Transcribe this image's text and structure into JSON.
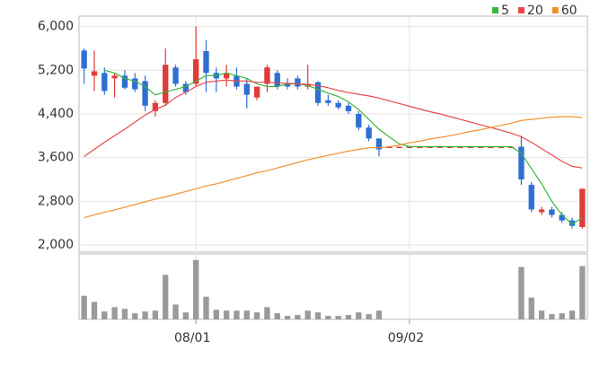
{
  "chart_data": {
    "type": "candlestick",
    "categories": [
      null,
      null,
      null,
      null,
      null,
      null,
      null,
      null,
      null,
      null,
      null,
      "08/01",
      null,
      null,
      null,
      null,
      null,
      null,
      null,
      null,
      null,
      null,
      null,
      null,
      null,
      null,
      null,
      null,
      null,
      null,
      null,
      null,
      "09/02",
      null,
      null,
      null,
      null,
      null,
      null,
      null,
      null,
      null,
      null,
      null,
      null,
      null,
      null,
      null,
      null,
      null
    ],
    "open": [
      5560,
      5100,
      5150,
      5050,
      5100,
      5050,
      5000,
      4450,
      4600,
      5250,
      4950,
      4950,
      5550,
      5150,
      5050,
      5100,
      4950,
      4700,
      4950,
      5150,
      4950,
      5050,
      4900,
      4980,
      4650,
      4600,
      4550,
      4400,
      4150,
      3950,
      3800,
      3800,
      3800,
      3800,
      3800,
      3800,
      3800,
      3800,
      3800,
      3800,
      3800,
      3800,
      3800,
      3800,
      3100,
      2600,
      2650,
      2550,
      2450,
      2330
    ],
    "high": [
      5600,
      5560,
      5250,
      5150,
      5200,
      5150,
      5100,
      4650,
      5600,
      5300,
      5000,
      6000,
      5750,
      5250,
      5300,
      5250,
      5050,
      4900,
      5300,
      5200,
      5050,
      5100,
      5300,
      5000,
      4750,
      4650,
      4600,
      4450,
      4200,
      3950,
      3800,
      3800,
      3800,
      3800,
      3800,
      3800,
      3800,
      3800,
      3800,
      3800,
      3800,
      3800,
      3800,
      4000,
      3150,
      2700,
      2700,
      2600,
      2500,
      3030
    ],
    "low": [
      4950,
      4820,
      4750,
      4700,
      4850,
      4800,
      4450,
      4350,
      4550,
      4900,
      4750,
      4900,
      4800,
      4800,
      4900,
      4850,
      4500,
      4650,
      4800,
      4850,
      4850,
      4850,
      4850,
      4550,
      4550,
      4480,
      4400,
      4100,
      3900,
      3620,
      3800,
      3800,
      3800,
      3800,
      3800,
      3800,
      3800,
      3800,
      3800,
      3800,
      3800,
      3800,
      3800,
      3100,
      2600,
      2550,
      2500,
      2400,
      2300,
      2300
    ],
    "close": [
      5230,
      5180,
      4820,
      5100,
      4880,
      4850,
      4550,
      4600,
      5300,
      4950,
      4800,
      5400,
      5150,
      5050,
      5150,
      4900,
      4750,
      4900,
      5250,
      4900,
      4900,
      4900,
      4950,
      4600,
      4600,
      4520,
      4450,
      4150,
      3950,
      3750,
      3800,
      3800,
      3800,
      3800,
      3800,
      3800,
      3800,
      3800,
      3800,
      3800,
      3800,
      3800,
      3800,
      3200,
      2650,
      2650,
      2550,
      2450,
      2350,
      3030
    ],
    "up_color": "#e03a3a",
    "down_color": "#2e6fd3",
    "ylim": [
      1870,
      6190
    ],
    "yticks": [
      {
        "value": 2000,
        "label": "2,000"
      },
      {
        "value": 2800,
        "label": "2,800"
      },
      {
        "value": 3600,
        "label": "3,600"
      },
      {
        "value": 4400,
        "label": "4,400"
      },
      {
        "value": 5200,
        "label": "5,200"
      },
      {
        "value": 6000,
        "label": "6,000"
      }
    ],
    "volume": [
      27,
      20,
      9,
      14,
      12,
      7,
      9,
      10,
      51,
      17,
      8,
      68,
      26,
      11,
      10,
      10,
      10,
      8,
      14,
      7,
      4,
      5,
      10,
      8,
      4,
      4,
      5,
      8,
      6,
      10,
      0,
      0,
      0,
      0,
      0,
      0,
      0,
      0,
      0,
      0,
      0,
      0,
      0,
      60,
      25,
      10,
      6,
      7,
      10,
      61
    ],
    "volume_color": "#9a9a9a",
    "volume_ylim": [
      0,
      75
    ],
    "series": [
      {
        "name": "5",
        "color": "#3cb43c",
        "values": [
          null,
          null,
          5200,
          5150,
          5050,
          5000,
          4900,
          4750,
          4800,
          4850,
          4900,
          5000,
          5100,
          5100,
          5150,
          5100,
          5050,
          4950,
          4900,
          4900,
          4950,
          4950,
          4920,
          4850,
          4780,
          4720,
          4620,
          4480,
          4300,
          4120,
          3980,
          3850,
          3800,
          3800,
          3800,
          3800,
          3800,
          3800,
          3800,
          3800,
          3800,
          3800,
          3800,
          3680,
          3400,
          3120,
          2800,
          2550,
          2380,
          2500
        ]
      },
      {
        "name": "20",
        "color": "#e8484b",
        "values": [
          3620,
          3750,
          3880,
          4000,
          4120,
          4250,
          4380,
          4480,
          4560,
          4700,
          4800,
          4900,
          4980,
          5000,
          5020,
          5000,
          5000,
          4980,
          4980,
          4970,
          4960,
          4950,
          4940,
          4920,
          4880,
          4830,
          4790,
          4760,
          4730,
          4690,
          4640,
          4590,
          4540,
          4490,
          4440,
          4400,
          4350,
          4300,
          4250,
          4200,
          4150,
          4100,
          4050,
          3980,
          3880,
          3760,
          3650,
          3530,
          3440,
          3410
        ]
      },
      {
        "name": "60",
        "color": "#f0912c",
        "values": [
          2500,
          2550,
          2600,
          2640,
          2690,
          2740,
          2790,
          2840,
          2880,
          2930,
          2980,
          3030,
          3080,
          3120,
          3170,
          3220,
          3270,
          3320,
          3360,
          3410,
          3460,
          3510,
          3560,
          3600,
          3640,
          3680,
          3720,
          3750,
          3780,
          3780,
          3800,
          3830,
          3870,
          3900,
          3940,
          3970,
          4000,
          4040,
          4080,
          4110,
          4150,
          4190,
          4230,
          4280,
          4300,
          4320,
          4340,
          4350,
          4350,
          4330
        ]
      }
    ]
  }
}
